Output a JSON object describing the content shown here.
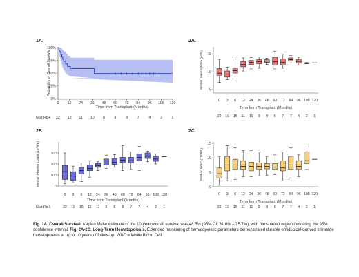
{
  "panels": {
    "p1a": {
      "label": "1A."
    },
    "p2a": {
      "label": "2A."
    },
    "p2b": {
      "label": "2B."
    },
    "p2c": {
      "label": "2C."
    }
  },
  "caption": {
    "fig1_title": "Fig. 1A. Overall Survival.",
    "fig1_text": " Kaplan Meier estimate of the 10-year overall survival was 48.5% (95% CI, 31.0% – 75.7%), with the shaded region indicating the 95% confidence interval. ",
    "fig2_title": "Fig. 2A-2C. Long-Term Hematopoiesis.",
    "fig2_text": " Extended monitoring of hematopoietic parameters demonstrated durable omidubicel-derived trilineage hematopoiesis at up to 10 years of follow-up. WBC = White Blood Cell."
  },
  "chart_data": [
    {
      "id": "p1a",
      "type": "line",
      "xlabel": "Time from Transplant (Months)",
      "ylabel": "Probability of Overall Survival",
      "xlim": [
        0,
        120
      ],
      "ylim": [
        0,
        1
      ],
      "xticks": [
        0,
        12,
        24,
        36,
        48,
        60,
        72,
        84,
        96,
        108,
        120
      ],
      "yticks": [
        "0%",
        "25%",
        "50%",
        "75%",
        "100%"
      ],
      "ytick_values": [
        0,
        0.25,
        0.5,
        0.75,
        1.0
      ],
      "series": [
        {
          "x": [
            0,
            1,
            2,
            3,
            4,
            5,
            6,
            8,
            10,
            13,
            38,
            120
          ],
          "y": [
            1.0,
            0.95,
            0.91,
            0.86,
            0.82,
            0.77,
            0.73,
            0.68,
            0.63,
            0.59,
            0.49,
            0.49
          ]
        }
      ],
      "ci": {
        "x": [
          0,
          1,
          2,
          3,
          4,
          5,
          6,
          8,
          10,
          13,
          38,
          120
        ],
        "upper": [
          1.0,
          1.0,
          1.0,
          0.99,
          0.97,
          0.95,
          0.92,
          0.88,
          0.84,
          0.8,
          0.76,
          0.76
        ],
        "lower": [
          1.0,
          0.87,
          0.76,
          0.7,
          0.64,
          0.58,
          0.53,
          0.48,
          0.44,
          0.4,
          0.31,
          0.31
        ]
      },
      "censor_x": [
        60,
        66,
        72,
        78,
        84,
        88,
        92,
        96,
        100,
        106
      ],
      "colors": {
        "line": "#2646b3",
        "ci": "#b7bff2"
      },
      "at_risk_label": "N at Risk",
      "at_risk": {
        "x": [
          0,
          12,
          24,
          36,
          48,
          60,
          72,
          84,
          96,
          108,
          120
        ],
        "n": [
          "22",
          "13",
          "11",
          "10",
          "8",
          "8",
          "8",
          "7",
          "4",
          "3",
          "1"
        ]
      }
    },
    {
      "id": "p2a",
      "type": "box",
      "xlabel": "Time from Transplant (Months)",
      "ylabel": "Median Hemoglobin (g/dL)",
      "ylim": [
        4,
        17
      ],
      "yticks": [
        5,
        10,
        15
      ],
      "categories": [
        "0",
        "3",
        "6",
        "12",
        "24",
        "36",
        "48",
        "60",
        "72",
        "84",
        "96",
        "108",
        "120"
      ],
      "boxes": [
        {
          "min": 7.0,
          "q1": 8.8,
          "median": 9.6,
          "q3": 10.9,
          "max": 13.5
        },
        {
          "min": 7.8,
          "q1": 8.5,
          "median": 9.3,
          "q3": 10.2,
          "max": 11.3
        },
        {
          "min": 7.4,
          "q1": 9.6,
          "median": 10.3,
          "q3": 11.0,
          "max": 13.6
        },
        {
          "min": 10.2,
          "q1": 11.4,
          "median": 12.0,
          "q3": 12.9,
          "max": 13.9
        },
        {
          "min": 10.8,
          "q1": 12.0,
          "median": 12.6,
          "q3": 13.2,
          "max": 14.0
        },
        {
          "min": 11.0,
          "q1": 12.2,
          "median": 12.8,
          "q3": 13.4,
          "max": 14.2
        },
        {
          "min": 12.0,
          "q1": 12.6,
          "median": 13.0,
          "q3": 13.4,
          "max": 13.8
        },
        {
          "min": 10.8,
          "q1": 11.9,
          "median": 12.8,
          "q3": 14.0,
          "max": 15.8
        },
        {
          "min": 11.0,
          "q1": 11.9,
          "median": 12.6,
          "q3": 13.6,
          "max": 15.0
        },
        {
          "min": 12.4,
          "q1": 13.0,
          "median": 13.4,
          "q3": 13.9,
          "max": 14.6
        },
        {
          "min": 11.8,
          "q1": 12.4,
          "median": 12.9,
          "q3": 13.5,
          "max": 14.1
        },
        {
          "min": 12.2,
          "q1": 12.3,
          "median": 12.4,
          "q3": 12.5,
          "max": 12.6
        },
        {
          "min": 12.5,
          "q1": 12.5,
          "median": 12.5,
          "q3": 12.5,
          "max": 12.5
        }
      ],
      "colors": {
        "box": "#f07a7a"
      },
      "at_risk": {
        "n": [
          "22",
          "19",
          "15",
          "11",
          "11",
          "9",
          "8",
          "8",
          "7",
          "7",
          "4",
          "2",
          "1"
        ]
      }
    },
    {
      "id": "p2b",
      "type": "box",
      "xlabel": "Time from Transplant (Months)",
      "ylabel": "Median Platelet Count (10^9/L)",
      "ylim": [
        0,
        400
      ],
      "yticks": [
        0,
        100,
        200,
        300
      ],
      "categories": [
        "0",
        "3",
        "6",
        "12",
        "24",
        "36",
        "48",
        "60",
        "72",
        "84",
        "96",
        "108",
        "120"
      ],
      "boxes": [
        {
          "min": 20,
          "q1": 60,
          "median": 130,
          "q3": 185,
          "max": 300
        },
        {
          "min": 30,
          "q1": 50,
          "median": 90,
          "q3": 130,
          "max": 180
        },
        {
          "min": 40,
          "q1": 110,
          "median": 140,
          "q3": 170,
          "max": 210
        },
        {
          "min": 80,
          "q1": 140,
          "median": 160,
          "q3": 190,
          "max": 230
        },
        {
          "min": 140,
          "q1": 170,
          "median": 185,
          "q3": 205,
          "max": 220
        },
        {
          "min": 160,
          "q1": 190,
          "median": 210,
          "q3": 245,
          "max": 280
        },
        {
          "min": 170,
          "q1": 195,
          "median": 215,
          "q3": 250,
          "max": 285
        },
        {
          "min": 140,
          "q1": 210,
          "median": 235,
          "q3": 260,
          "max": 365
        },
        {
          "min": 150,
          "q1": 210,
          "median": 230,
          "q3": 260,
          "max": 310
        },
        {
          "min": 140,
          "q1": 230,
          "median": 260,
          "q3": 290,
          "max": 360
        },
        {
          "min": 220,
          "q1": 250,
          "median": 270,
          "q3": 300,
          "max": 315
        },
        {
          "min": 200,
          "q1": 225,
          "median": 245,
          "q3": 270,
          "max": 290
        },
        {
          "min": 265,
          "q1": 265,
          "median": 265,
          "q3": 265,
          "max": 265
        }
      ],
      "colors": {
        "box": "#6b6be0"
      },
      "at_risk_label": "N at Risk",
      "at_risk": {
        "n": [
          "22",
          "19",
          "15",
          "11",
          "11",
          "9",
          "8",
          "8",
          "7",
          "7",
          "4",
          "2",
          "1"
        ]
      }
    },
    {
      "id": "p2c",
      "type": "box",
      "xlabel": "Time from Transplant (Months)",
      "ylabel": "Median WBC (10^9/L)",
      "ylim": [
        0,
        15.5
      ],
      "yticks": [
        0,
        5,
        10,
        15
      ],
      "categories": [
        "0",
        "3",
        "6",
        "12",
        "24",
        "36",
        "48",
        "60",
        "72",
        "84",
        "96",
        "108",
        "120"
      ],
      "boxes": [
        {
          "min": 0.5,
          "q1": 3.0,
          "median": 4.5,
          "q3": 6.5,
          "max": 10.5
        },
        {
          "min": 2.0,
          "q1": 5.5,
          "median": 7.5,
          "q3": 10.5,
          "max": 14.2
        },
        {
          "min": 2.5,
          "q1": 6.0,
          "median": 7.5,
          "q3": 9.5,
          "max": 13.5
        },
        {
          "min": 3.5,
          "q1": 6.0,
          "median": 7.0,
          "q3": 9.0,
          "max": 12.5
        },
        {
          "min": 3.5,
          "q1": 5.5,
          "median": 7.0,
          "q3": 8.5,
          "max": 12.5
        },
        {
          "min": 3.8,
          "q1": 6.0,
          "median": 7.0,
          "q3": 8.2,
          "max": 12.0
        },
        {
          "min": 4.0,
          "q1": 6.2,
          "median": 7.0,
          "q3": 8.0,
          "max": 10.5
        },
        {
          "min": 4.2,
          "q1": 6.0,
          "median": 6.8,
          "q3": 8.0,
          "max": 11.0
        },
        {
          "min": 2.0,
          "q1": 5.5,
          "median": 6.5,
          "q3": 9.0,
          "max": 12.0
        },
        {
          "min": 3.0,
          "q1": 6.0,
          "median": 7.5,
          "q3": 10.5,
          "max": 13.5
        },
        {
          "min": 3.5,
          "q1": 6.0,
          "median": 7.0,
          "q3": 9.0,
          "max": 11.0
        },
        {
          "min": 6.0,
          "q1": 8.0,
          "median": 9.0,
          "q3": 12.0,
          "max": 14.5
        },
        {
          "min": 9.5,
          "q1": 9.5,
          "median": 9.5,
          "q3": 9.5,
          "max": 9.5
        }
      ],
      "colors": {
        "box": "#f7cf7a"
      },
      "at_risk": {
        "n": [
          "22",
          "19",
          "15",
          "11",
          "11",
          "9",
          "8",
          "8",
          "7",
          "7",
          "4",
          "2",
          "1"
        ]
      }
    }
  ]
}
